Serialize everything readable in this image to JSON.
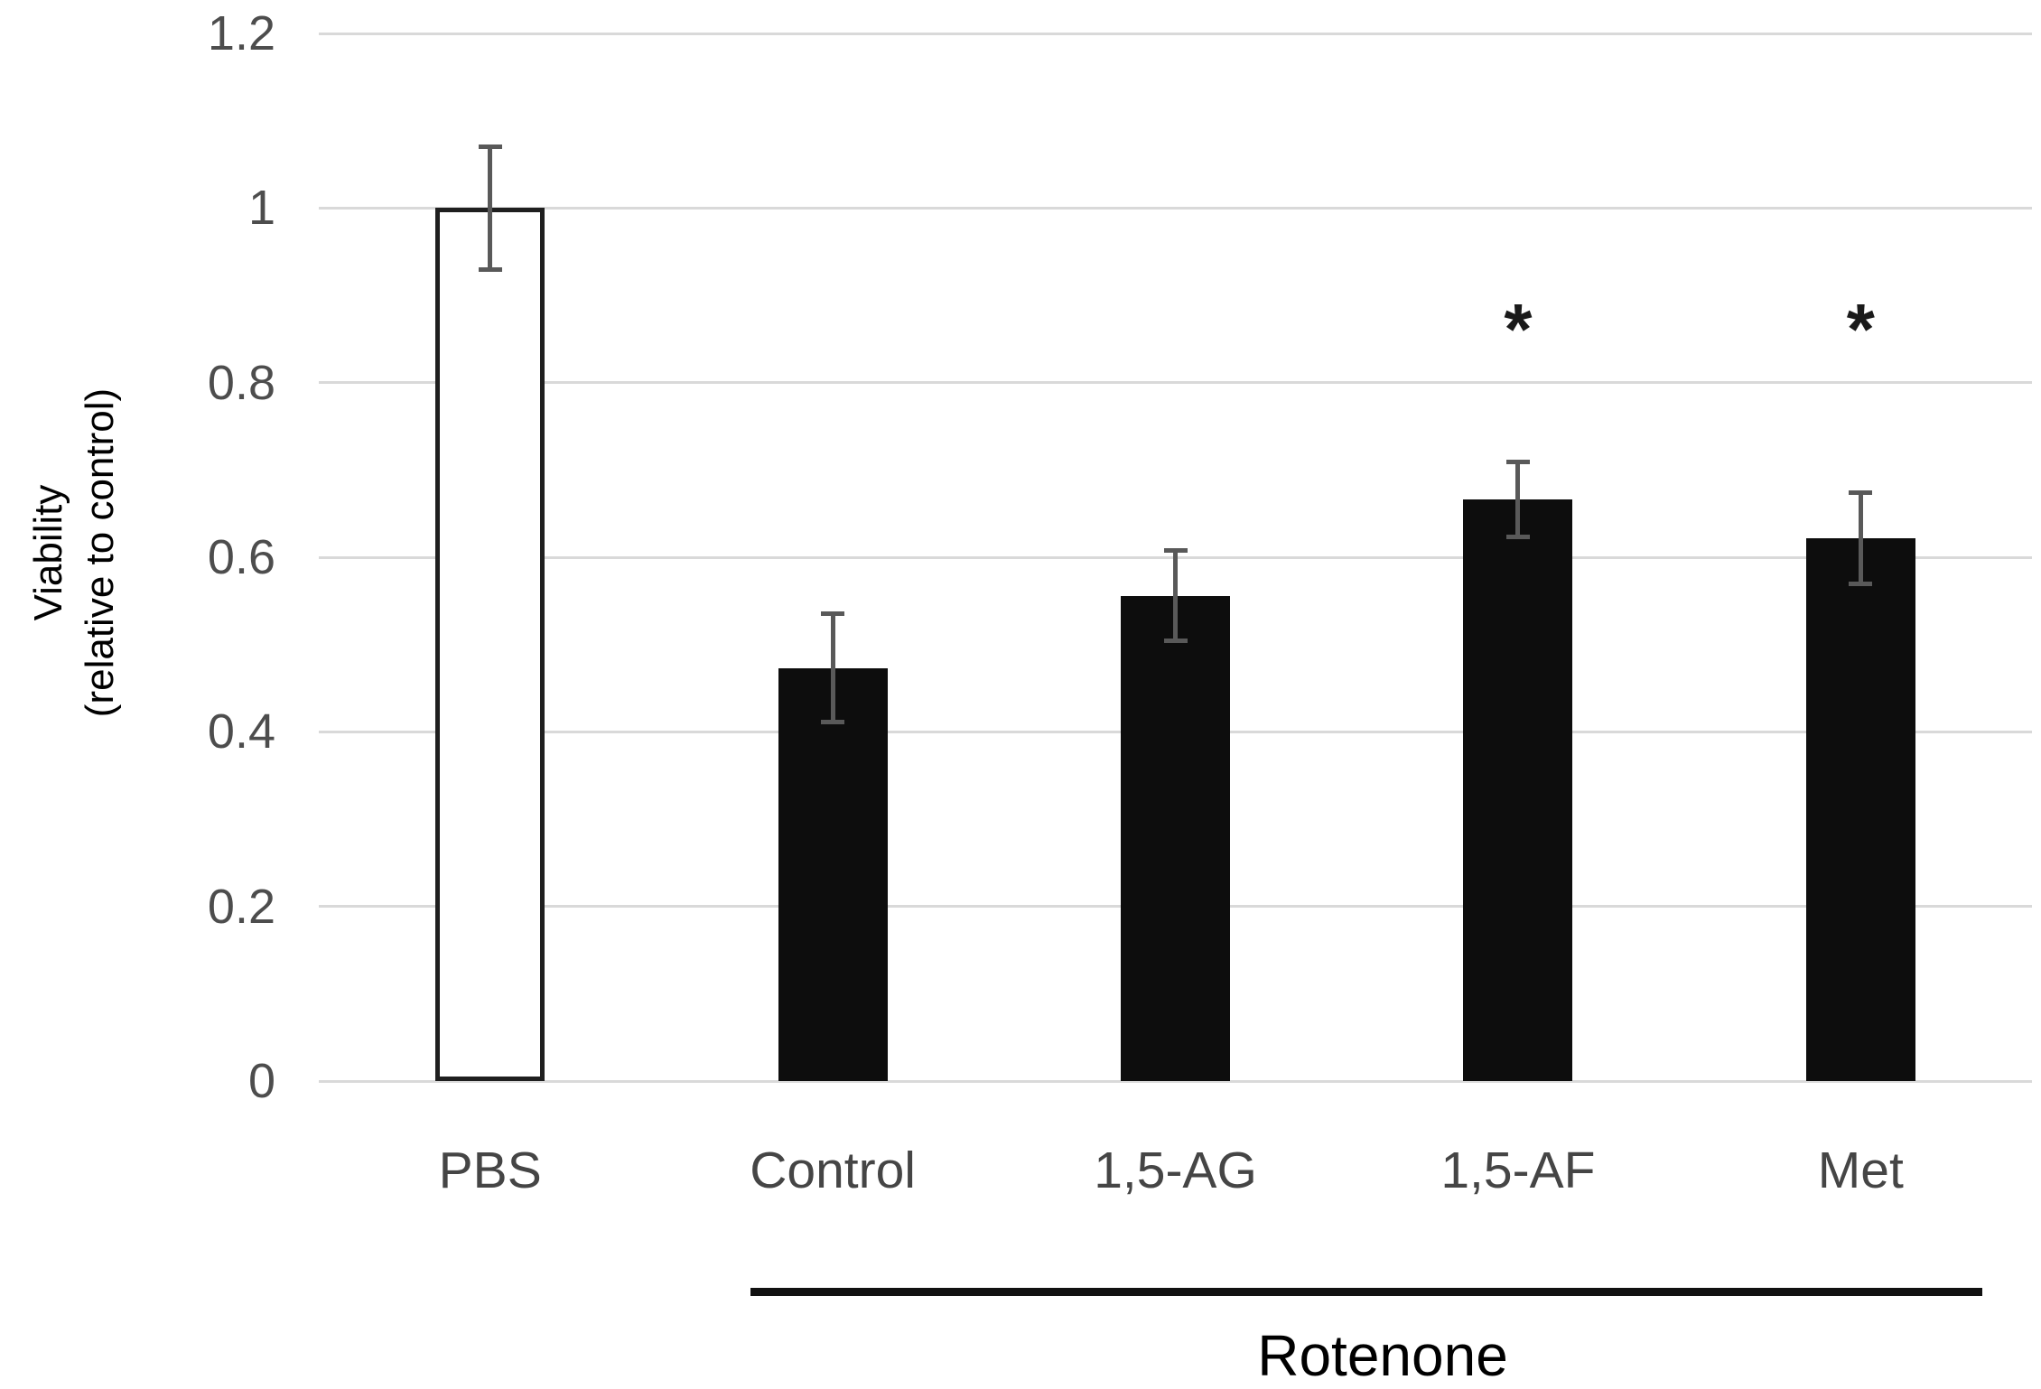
{
  "chart_data": {
    "type": "bar",
    "title": "",
    "ylabel_lines": [
      "Viability",
      "(relative to control)"
    ],
    "categories": [
      "PBS",
      "Control",
      "1,5-AG",
      "1,5-AF",
      "Met"
    ],
    "values": [
      1.0,
      0.473,
      0.556,
      0.666,
      0.622
    ],
    "errors": [
      0.07,
      0.062,
      0.052,
      0.043,
      0.052
    ],
    "bar_fills": [
      "white",
      "black",
      "black",
      "black",
      "black"
    ],
    "significance": [
      false,
      false,
      false,
      true,
      true
    ],
    "significance_marker": "*",
    "ylim": [
      0,
      1.2
    ],
    "yticks": [
      0,
      0.2,
      0.4,
      0.6,
      0.8,
      1,
      1.2
    ],
    "ytick_labels": [
      "0",
      "0.2",
      "0.4",
      "0.6",
      "0.8",
      "1",
      "1.2"
    ],
    "grid": "horizontal",
    "legend": "none",
    "group_label": "Rotenone",
    "group_span_categories": [
      "Control",
      "1,5-AG",
      "1,5-AF",
      "Met"
    ]
  },
  "colors": {
    "grid": "#d9d9d9",
    "bar_black": "#0d0d0d",
    "bar_white_fill": "#ffffff",
    "bar_white_border": "#1f1f1f",
    "error_bar": "#595959",
    "tick_text": "#4d4d4d",
    "category_text": "#454545",
    "annotation_text": "#000000"
  }
}
